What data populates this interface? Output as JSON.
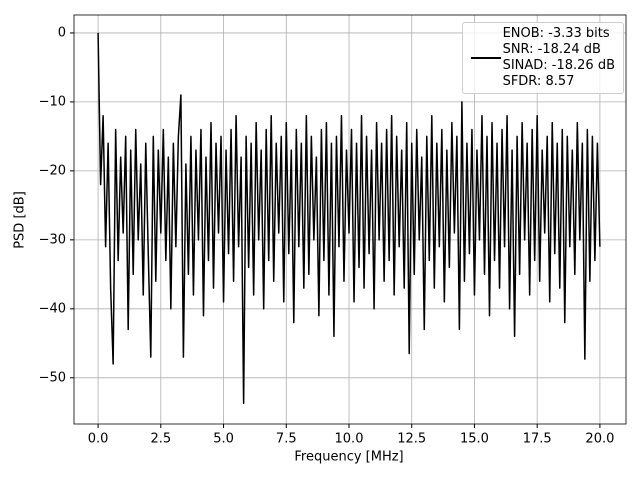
{
  "chart_data": {
    "type": "line",
    "xlabel": "Frequency [MHz]",
    "ylabel": "PSD [dB]",
    "x": [
      0,
      0.1,
      0.2,
      0.3,
      0.4,
      0.5,
      0.6,
      0.7,
      0.8,
      0.9,
      1,
      1.1,
      1.2,
      1.3,
      1.4,
      1.5,
      1.6,
      1.7,
      1.8,
      1.9,
      2,
      2.1,
      2.2,
      2.3,
      2.4,
      2.5,
      2.6,
      2.7,
      2.8,
      2.9,
      3,
      3.1,
      3.2,
      3.3,
      3.4,
      3.5,
      3.6,
      3.7,
      3.8,
      3.9,
      4,
      4.1,
      4.2,
      4.3,
      4.4,
      4.5,
      4.6,
      4.7,
      4.8,
      4.9,
      5,
      5.1,
      5.2,
      5.3,
      5.4,
      5.5,
      5.6,
      5.7,
      5.8,
      5.9,
      6,
      6.1,
      6.2,
      6.3,
      6.4,
      6.5,
      6.6,
      6.7,
      6.8,
      6.9,
      7,
      7.1,
      7.2,
      7.3,
      7.4,
      7.5,
      7.6,
      7.7,
      7.8,
      7.9,
      8,
      8.1,
      8.2,
      8.3,
      8.4,
      8.5,
      8.6,
      8.7,
      8.8,
      8.9,
      9,
      9.1,
      9.2,
      9.3,
      9.4,
      9.5,
      9.6,
      9.7,
      9.8,
      9.9,
      10,
      10.1,
      10.2,
      10.3,
      10.4,
      10.5,
      10.6,
      10.7,
      10.8,
      10.9,
      11,
      11.1,
      11.2,
      11.3,
      11.4,
      11.5,
      11.6,
      11.7,
      11.8,
      11.9,
      12,
      12.1,
      12.2,
      12.3,
      12.4,
      12.5,
      12.6,
      12.7,
      12.8,
      12.9,
      13,
      13.1,
      13.2,
      13.3,
      13.4,
      13.5,
      13.6,
      13.7,
      13.8,
      13.9,
      14,
      14.1,
      14.2,
      14.3,
      14.4,
      14.5,
      14.6,
      14.7,
      14.8,
      14.9,
      15,
      15.1,
      15.2,
      15.3,
      15.4,
      15.5,
      15.6,
      15.7,
      15.8,
      15.9,
      16,
      16.1,
      16.2,
      16.3,
      16.4,
      16.5,
      16.6,
      16.7,
      16.8,
      16.9,
      17,
      17.1,
      17.2,
      17.3,
      17.4,
      17.5,
      17.6,
      17.7,
      17.8,
      17.9,
      18,
      18.1,
      18.2,
      18.3,
      18.4,
      18.5,
      18.6,
      18.7,
      18.8,
      18.9,
      19,
      19.1,
      19.2,
      19.3,
      19.4,
      19.5,
      19.6,
      19.7,
      19.8,
      19.9,
      20
    ],
    "series": [
      {
        "name": "ENOB: -3.33 bits\nSNR: -18.24 dB\nSINAD: -18.26 dB\nSFDR: 8.57",
        "color": "#000000",
        "values": [
          0,
          -22,
          -12,
          -31,
          -16,
          -37,
          -48,
          -14,
          -33,
          -18,
          -29,
          -15,
          -43,
          -17,
          -35,
          -14,
          -30,
          -19,
          -38,
          -16,
          -32,
          -47,
          -15,
          -36,
          -17,
          -29,
          -14,
          -33,
          -18,
          -40,
          -16,
          -31,
          -15,
          -9,
          -47,
          -19,
          -35,
          -15,
          -38,
          -17,
          -30,
          -14,
          -41,
          -18,
          -33,
          -13,
          -37,
          -16,
          -29,
          -15,
          -39,
          -17,
          -32,
          -14,
          -36,
          -12,
          -31,
          -18,
          -53.7,
          -15,
          -34,
          -16,
          -38,
          -13,
          -30,
          -17,
          -40,
          -14,
          -33,
          -12,
          -36,
          -16,
          -29,
          -15,
          -39,
          -13,
          -32,
          -17,
          -42,
          -14,
          -31,
          -16,
          -37,
          -12,
          -35,
          -15,
          -30,
          -18,
          -41,
          -14,
          -33,
          -13,
          -38,
          -16,
          -44,
          -15,
          -31,
          -12,
          -36,
          -17,
          -29,
          -14,
          -39,
          -16,
          -34,
          -12,
          -37,
          -15,
          -32,
          -17,
          -40,
          -13,
          -30,
          -16,
          -36,
          -14,
          -33,
          -12,
          -38,
          -15,
          -31,
          -17,
          -37,
          -13,
          -46.5,
          -16,
          -35,
          -14,
          -30,
          -18,
          -43,
          -15,
          -33,
          -12,
          -37,
          -16,
          -31,
          -14,
          -39,
          -17,
          -34,
          -13,
          -29,
          -15,
          -43,
          -10,
          -36,
          -16,
          -32,
          -14,
          -38,
          -17,
          -30,
          -12,
          -35,
          -15,
          -41,
          -13,
          -33,
          -16,
          -37,
          -14,
          -31,
          -12,
          -40,
          -17,
          -44,
          -15,
          -35,
          -13,
          -30,
          -16,
          -38,
          -14,
          -33,
          -12,
          -36,
          -17,
          -29,
          -15,
          -39,
          -13,
          -32,
          -16,
          -37,
          -14,
          -42,
          -15,
          -31,
          -17,
          -35,
          -13,
          -30,
          -16,
          -47.3,
          -14,
          -36,
          -15,
          -33,
          -16,
          -31
        ]
      }
    ],
    "xlim": [
      -0.96,
      21.04
    ],
    "ylim": [
      -56.7,
      2.6
    ],
    "xticks": [
      {
        "value": 0,
        "label": "0.0"
      },
      2.5,
      {
        "value": 5,
        "label": "5.0"
      },
      7.5,
      {
        "value": 10,
        "label": "10.0"
      },
      12.5,
      {
        "value": 15,
        "label": "15.0"
      },
      17.5,
      {
        "value": 20,
        "label": "20.0"
      }
    ],
    "yticks": [
      0,
      {
        "value": -10,
        "label": "−10"
      },
      {
        "value": -20,
        "label": "−20"
      },
      {
        "value": -30,
        "label": "−30"
      },
      {
        "value": -40,
        "label": "−40"
      },
      {
        "value": -50,
        "label": "−50"
      }
    ],
    "grid": true,
    "legend": "upper right"
  }
}
